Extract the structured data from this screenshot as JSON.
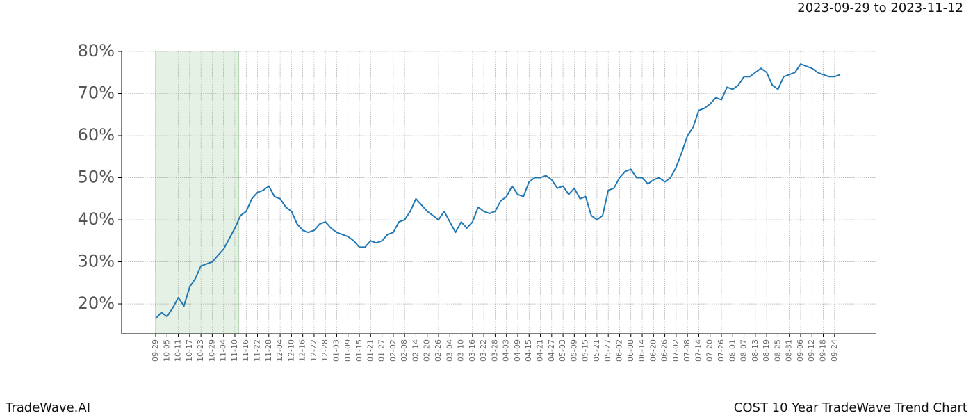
{
  "chart_data": {
    "type": "line",
    "title": "2023-09-29 to 2023-11-12",
    "footer_left": "TradeWave.AI",
    "footer_right": "COST 10 Year TradeWave Trend Chart",
    "shade": [
      "2023-09-29",
      "2023-11-12"
    ],
    "shade_color": "#d5e8d4",
    "color": "#1f77b4",
    "grid": true,
    "categories": [
      "09-29",
      null,
      "10-05",
      null,
      "10-11",
      null,
      "10-17",
      null,
      "10-23",
      null,
      "10-29",
      null,
      "11-04",
      null,
      "11-10",
      null,
      "11-16",
      null,
      "11-22",
      null,
      "11-28",
      null,
      "12-04",
      null,
      "12-10",
      null,
      "12-16",
      null,
      "12-22",
      null,
      "12-28",
      null,
      "01-03",
      null,
      "01-09",
      null,
      "01-15",
      null,
      "01-21",
      null,
      "01-27",
      null,
      "02-02",
      null,
      "02-08",
      null,
      "02-14",
      null,
      "02-20",
      null,
      "02-26",
      null,
      "03-04",
      null,
      "03-10",
      null,
      "03-16",
      null,
      "03-22",
      null,
      "03-28",
      null,
      "04-03",
      null,
      "04-09",
      null,
      "04-15",
      null,
      "04-21",
      null,
      "04-27",
      null,
      "05-03",
      null,
      "05-09",
      null,
      "05-15",
      null,
      "05-21",
      null,
      "05-27",
      null,
      "06-02",
      null,
      "06-08",
      null,
      "06-14",
      null,
      "06-20",
      null,
      "06-26",
      null,
      "07-02",
      null,
      "07-08",
      null,
      "07-14",
      null,
      "07-20",
      null,
      "07-26",
      null,
      "08-01",
      null,
      "08-07",
      null,
      "08-13",
      null,
      "08-19",
      null,
      "08-25",
      null,
      "08-31",
      null,
      "09-06",
      null,
      "09-12",
      null,
      "09-18",
      null,
      "09-24",
      null
    ],
    "values": [
      16.5,
      18,
      17,
      19,
      21.5,
      19.5,
      24,
      26,
      29,
      29.5,
      30,
      31.5,
      33,
      35.5,
      38,
      41,
      42,
      45,
      46.5,
      47,
      48,
      45.5,
      45,
      43,
      42,
      39,
      37.5,
      37,
      37.5,
      39,
      39.5,
      38,
      37,
      36.5,
      36,
      35,
      33.5,
      33.5,
      35,
      34.5,
      35,
      36.5,
      37,
      39.5,
      40,
      42,
      45,
      43.5,
      42,
      41,
      40,
      42,
      39.5,
      37,
      39.5,
      38,
      39.5,
      43,
      42,
      41.5,
      42,
      44.5,
      45.5,
      48,
      46,
      45.5,
      49,
      50,
      50,
      50.5,
      49.5,
      47.5,
      48,
      46,
      47.5,
      45,
      45.5,
      41,
      40,
      41,
      47,
      47.5,
      50,
      51.5,
      52,
      50,
      50,
      48.5,
      49.5,
      50,
      49,
      50,
      52.5,
      56,
      60,
      62,
      66,
      66.5,
      67.5,
      69,
      68.5,
      71.5,
      71,
      72,
      74,
      74,
      75,
      76,
      75,
      72,
      71,
      74,
      74.5,
      75,
      77,
      76.5,
      76,
      75,
      74.5,
      74,
      74,
      74.5
    ],
    "ylim": [
      12.9,
      80
    ],
    "yticks": [
      {
        "value": 20,
        "label": "20%"
      },
      {
        "value": 30,
        "label": "30%"
      },
      {
        "value": 40,
        "label": "40%"
      },
      {
        "value": 50,
        "label": "50%"
      },
      {
        "value": 60,
        "label": "60%"
      },
      {
        "value": 70,
        "label": "70%"
      },
      {
        "value": 80,
        "label": "80%"
      }
    ]
  }
}
